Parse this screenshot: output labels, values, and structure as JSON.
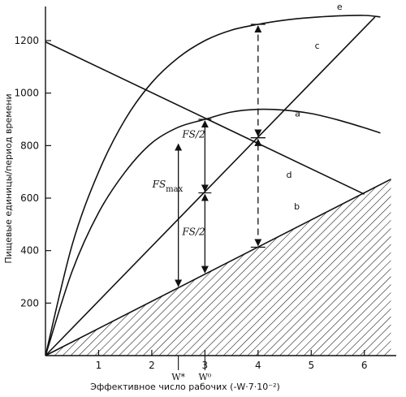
{
  "chart_data": {
    "type": "line",
    "title": "",
    "xlabel": "Эффективное число рабочих (-W·7·10⁻²)",
    "ylabel": "Пищевые единицы/период времени",
    "xlim": [
      0,
      6.6
    ],
    "ylim": [
      0,
      1330
    ],
    "x_ticks": [
      1,
      2,
      3,
      4,
      5,
      6
    ],
    "x_tick_labels": [
      "1",
      "2",
      "3",
      "4",
      "5",
      "6"
    ],
    "y_ticks": [
      200,
      400,
      600,
      800,
      1000,
      1200
    ],
    "y_tick_labels": [
      "200",
      "400",
      "600",
      "800",
      "1000",
      "1200"
    ],
    "grid": false,
    "series": [
      {
        "name": "e",
        "x": [
          0,
          0.5,
          1,
          1.5,
          2,
          2.5,
          3,
          3.5,
          4,
          4.5,
          5,
          5.5,
          6,
          6.3
        ],
        "y": [
          0,
          420,
          700,
          900,
          1040,
          1135,
          1200,
          1240,
          1262,
          1278,
          1288,
          1294,
          1296,
          1290
        ]
      },
      {
        "name": "a",
        "x": [
          0,
          0.5,
          1,
          1.5,
          2,
          2.5,
          3,
          3.5,
          4,
          4.5,
          5,
          5.5,
          6,
          6.3
        ],
        "y": [
          0,
          320,
          545,
          700,
          810,
          870,
          900,
          928,
          938,
          935,
          922,
          898,
          868,
          848
        ]
      },
      {
        "name": "c",
        "x": [
          0,
          6.2
        ],
        "y": [
          0,
          1290
        ]
      },
      {
        "name": "d",
        "x": [
          0,
          6.0
        ],
        "y": [
          1195,
          615
        ]
      },
      {
        "name": "b",
        "x": [
          0,
          6.5
        ],
        "y": [
          0,
          672
        ]
      }
    ],
    "shaded_region": "below b",
    "annotations": [
      {
        "text": "FS",
        "sub": "max"
      },
      {
        "text": "FS/2"
      },
      {
        "text": "FS/2"
      }
    ],
    "x_markers": [
      {
        "label": "W*",
        "x": 2.5
      },
      {
        "label": "W⁰",
        "x": 3.0
      }
    ],
    "vertical_arrows": [
      {
        "x": 2.5,
        "from_y": 258,
        "to_y": 812,
        "style": "solid"
      },
      {
        "x": 3.0,
        "from_y": 310,
        "to_y": 620,
        "style": "solid"
      },
      {
        "x": 3.0,
        "from_y": 620,
        "to_y": 900,
        "style": "solid"
      },
      {
        "x": 4.0,
        "from_y": 413,
        "to_y": 830,
        "style": "dashed"
      },
      {
        "x": 4.0,
        "from_y": 830,
        "to_y": 1262,
        "style": "dashed"
      }
    ]
  }
}
